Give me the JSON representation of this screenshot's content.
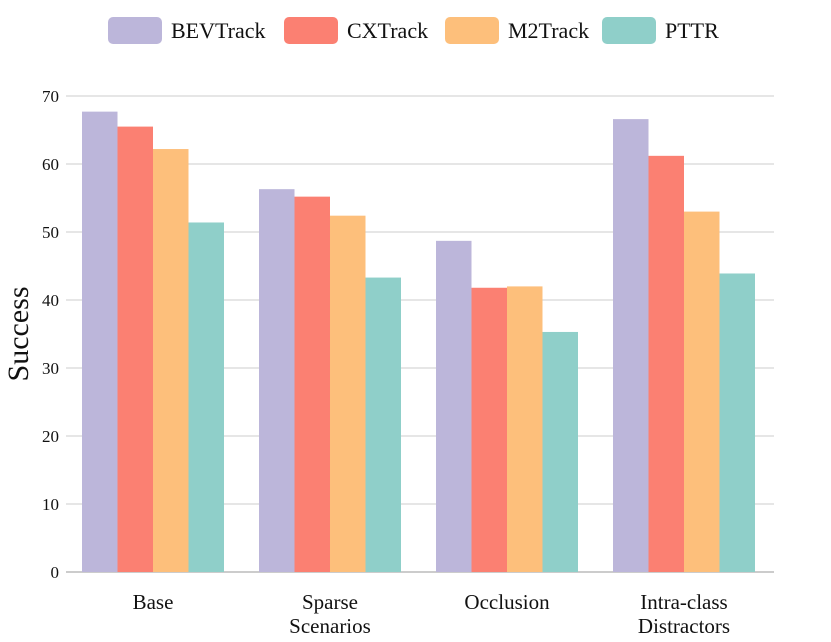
{
  "chart_data": {
    "type": "bar",
    "title": "",
    "xlabel": "",
    "ylabel": "Success",
    "ylim": [
      0,
      70
    ],
    "yticks": [
      0,
      10,
      20,
      30,
      40,
      50,
      60,
      70
    ],
    "grid": true,
    "legend_position": "top",
    "categories": [
      [
        "Base"
      ],
      [
        "Sparse",
        "Scenarios"
      ],
      [
        "Occlusion"
      ],
      [
        "Intra-class",
        "Distractors"
      ]
    ],
    "series": [
      {
        "name": "BEVTrack",
        "color": "#bcb6da",
        "values": [
          67.7,
          56.3,
          48.7,
          66.6
        ]
      },
      {
        "name": "CXTrack",
        "color": "#fb8072",
        "values": [
          65.5,
          55.2,
          41.8,
          61.2
        ]
      },
      {
        "name": "M2Track",
        "color": "#fdbf7b",
        "values": [
          62.2,
          52.4,
          42.0,
          53.0
        ]
      },
      {
        "name": "PTTR",
        "color": "#8fcfc9",
        "values": [
          51.4,
          43.3,
          35.3,
          43.9
        ]
      }
    ]
  }
}
